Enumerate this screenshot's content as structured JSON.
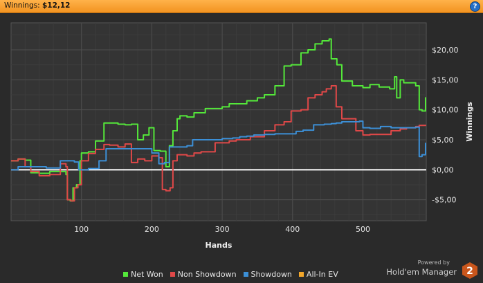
{
  "header": {
    "label": "Winnings:",
    "value": "$12,12",
    "help_label": "?"
  },
  "chart_data": {
    "type": "line",
    "title": "",
    "xlabel": "Hands",
    "ylabel": "Winnings",
    "xlim": [
      0,
      590
    ],
    "ylim": [
      -8.5,
      24.5
    ],
    "xticks": [
      100,
      200,
      300,
      400,
      500
    ],
    "yticks": [
      -5,
      0,
      5,
      10,
      15,
      20
    ],
    "ytick_labels": [
      "-$5,00",
      "$0,00",
      "$5,00",
      "$10,00",
      "$15,00",
      "$20,00"
    ],
    "grid": true,
    "legend_position": "bottom",
    "series": [
      {
        "name": "Net Won",
        "color": "#54e83a",
        "x": [
          0,
          10,
          20,
          28,
          40,
          55,
          70,
          78,
          80,
          84,
          88,
          93,
          98,
          100,
          110,
          120,
          132,
          140,
          152,
          162,
          171,
          180,
          188,
          196,
          203,
          212,
          220,
          225,
          230,
          236,
          240,
          250,
          260,
          276,
          290,
          300,
          310,
          320,
          335,
          350,
          360,
          375,
          388,
          398,
          412,
          422,
          432,
          442,
          452,
          455,
          463,
          470,
          485,
          500,
          510,
          523,
          538,
          545,
          548,
          553,
          558,
          575,
          580,
          584,
          589
        ],
        "y": [
          1.5,
          1.8,
          1.6,
          -0.5,
          -0.6,
          -0.3,
          -0.3,
          -0.8,
          -5.0,
          -5.2,
          -3.0,
          -2.5,
          1.5,
          2.8,
          3.0,
          4.8,
          7.8,
          7.8,
          7.6,
          7.5,
          7.6,
          5.0,
          5.8,
          7.0,
          3.2,
          3.1,
          0.5,
          4.0,
          6.5,
          8.5,
          9.0,
          8.8,
          9.5,
          10.2,
          10.2,
          10.5,
          11.0,
          11.0,
          11.5,
          12.0,
          12.5,
          14.0,
          17.3,
          17.5,
          19.5,
          20.0,
          21.0,
          21.5,
          21.8,
          18.5,
          17.5,
          14.8,
          14.0,
          13.7,
          14.2,
          13.8,
          13.5,
          15.5,
          12.0,
          15.0,
          14.5,
          14.0,
          10.0,
          9.8,
          12.1
        ]
      },
      {
        "name": "Non Showdown",
        "color": "#e04848",
        "x": [
          0,
          10,
          20,
          28,
          40,
          55,
          70,
          78,
          80,
          85,
          90,
          95,
          100,
          110,
          120,
          132,
          140,
          152,
          162,
          171,
          180,
          190,
          200,
          210,
          215,
          220,
          226,
          230,
          236,
          250,
          260,
          270,
          290,
          300,
          310,
          320,
          340,
          360,
          375,
          388,
          398,
          412,
          422,
          432,
          442,
          448,
          455,
          462,
          470,
          490,
          500,
          510,
          525,
          540,
          548,
          553,
          562,
          575,
          580,
          589
        ],
        "y": [
          1.5,
          1.8,
          0.5,
          -0.3,
          -1.0,
          -0.8,
          1.0,
          0.5,
          -5.0,
          -5.2,
          -3.0,
          -2.5,
          1.5,
          2.7,
          3.4,
          4.2,
          4.1,
          3.8,
          4.3,
          1.2,
          1.8,
          1.5,
          2.3,
          2.0,
          -3.3,
          -3.5,
          -3.0,
          1.5,
          2.5,
          2.3,
          2.8,
          3.0,
          4.5,
          4.5,
          4.8,
          5.0,
          5.5,
          6.5,
          7.5,
          8.0,
          9.8,
          10.0,
          12.0,
          12.5,
          13.0,
          13.5,
          14.0,
          10.5,
          8.5,
          6.5,
          5.8,
          5.9,
          5.9,
          6.5,
          6.5,
          6.8,
          7.0,
          7.2,
          7.4,
          7.5
        ]
      },
      {
        "name": "Showdown",
        "color": "#3c8fd6",
        "x": [
          0,
          10,
          20,
          30,
          40,
          50,
          60,
          70,
          80,
          90,
          96,
          100,
          110,
          125,
          135,
          150,
          160,
          175,
          195,
          200,
          210,
          218,
          225,
          240,
          250,
          258,
          270,
          285,
          300,
          315,
          325,
          335,
          345,
          360,
          375,
          395,
          405,
          415,
          430,
          445,
          455,
          462,
          470,
          485,
          495,
          500,
          510,
          525,
          540,
          555,
          565,
          575,
          580,
          584,
          589
        ],
        "y": [
          0.0,
          0.5,
          0.5,
          0.5,
          0.5,
          0.3,
          0.3,
          1.5,
          1.5,
          1.3,
          0.0,
          0.0,
          0.2,
          1.5,
          3.5,
          3.5,
          3.5,
          3.5,
          3.5,
          2.8,
          1.0,
          1.2,
          3.8,
          3.8,
          4.0,
          5.0,
          5.0,
          5.0,
          5.2,
          5.3,
          5.5,
          5.6,
          5.8,
          5.9,
          6.0,
          6.0,
          6.4,
          6.6,
          7.5,
          7.6,
          7.7,
          7.8,
          8.0,
          8.0,
          8.1,
          7.0,
          6.9,
          7.2,
          7.0,
          7.0,
          7.0,
          7.1,
          2.2,
          2.5,
          4.5
        ]
      },
      {
        "name": "All-In EV",
        "color": "#f2a62a",
        "x": [],
        "y": []
      }
    ]
  },
  "powered_by": {
    "line1": "Powered by",
    "line2": "Hold'em Manager",
    "badge": "2"
  }
}
